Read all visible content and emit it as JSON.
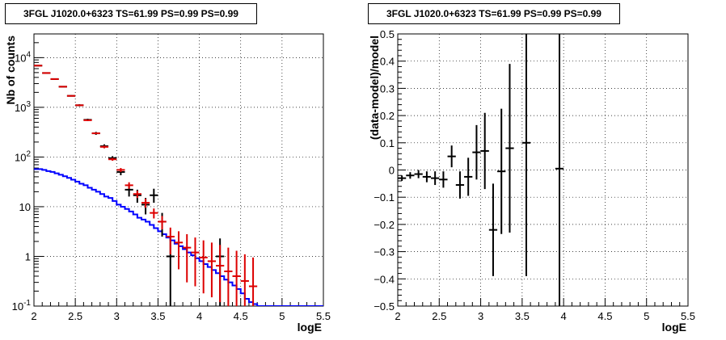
{
  "chart_data": [
    {
      "type": "step",
      "title": "3FGL J1020.0+6323 TS=61.99 PS=0.99 PS=0.99",
      "xlabel": "logE",
      "ylabel": "Nb of counts",
      "xlim": [
        2,
        5.5
      ],
      "ylim": [
        0.1,
        30000
      ],
      "yscale": "log",
      "grid": true,
      "x_ticks": [
        "2",
        "2.5",
        "3",
        "3.5",
        "4",
        "4.5",
        "5",
        "5.5"
      ],
      "y_ticks": [
        "10^{-1}",
        "1",
        "10",
        "10^{2}",
        "10^{3}",
        "10^{4}"
      ],
      "series": [
        {
          "style": "step",
          "color": "#0000ff",
          "edges": [
            2.0,
            2.05,
            2.1,
            2.15,
            2.2,
            2.25,
            2.3,
            2.35,
            2.4,
            2.45,
            2.5,
            2.55,
            2.6,
            2.65,
            2.7,
            2.75,
            2.8,
            2.85,
            2.9,
            2.95,
            3.0,
            3.05,
            3.1,
            3.15,
            3.2,
            3.25,
            3.3,
            3.35,
            3.4,
            3.45,
            3.5,
            3.55,
            3.6,
            3.65,
            3.7,
            3.75,
            3.8,
            3.85,
            3.9,
            3.95,
            4.0,
            4.05,
            4.1,
            4.15,
            4.2,
            4.25,
            4.3,
            4.35,
            4.4,
            4.45,
            4.5,
            4.55,
            4.6,
            4.65,
            4.7,
            5.5
          ],
          "values": [
            57,
            57,
            55,
            52,
            50,
            47,
            44,
            41,
            38,
            35,
            32,
            29,
            27,
            24,
            22,
            20,
            18,
            16,
            15,
            13,
            11,
            10,
            9,
            8,
            7,
            6,
            5.5,
            5,
            4.3,
            3.7,
            3.2,
            2.8,
            2.4,
            2.1,
            1.8,
            1.6,
            1.4,
            1.2,
            1.05,
            0.92,
            0.8,
            0.7,
            0.61,
            0.53,
            0.46,
            0.4,
            0.34,
            0.3,
            0.26,
            0.22,
            0.18,
            0.14,
            0.12,
            0.11,
            0.1
          ]
        },
        {
          "style": "errorbar",
          "color": "#000000",
          "x": [
            2.05,
            2.15,
            2.25,
            2.35,
            2.45,
            2.55,
            2.65,
            2.75,
            2.85,
            2.95,
            3.05,
            3.15,
            3.25,
            3.35,
            3.45,
            3.55,
            3.65,
            4.25
          ],
          "y": [
            6900,
            4900,
            3700,
            2600,
            1700,
            1100,
            560,
            300,
            165,
            95,
            50,
            22,
            17,
            11,
            17,
            5,
            1,
            1
          ],
          "ylo": [
            6800,
            4800,
            3600,
            2550,
            1650,
            1050,
            530,
            280,
            150,
            86,
            43,
            16,
            12,
            7,
            12,
            2.5,
            0.1,
            0.1
          ],
          "yhi": [
            7000,
            5000,
            3800,
            2650,
            1750,
            1150,
            590,
            320,
            180,
            104,
            57,
            28,
            22,
            15,
            23,
            7.5,
            2.3,
            2.3
          ]
        },
        {
          "style": "errorbar",
          "color": "#dd0000",
          "x": [
            2.05,
            2.15,
            2.25,
            2.35,
            2.45,
            2.55,
            2.65,
            2.75,
            2.85,
            2.95,
            3.05,
            3.15,
            3.25,
            3.35,
            3.45,
            3.55,
            3.65,
            3.75,
            3.85,
            3.95,
            4.05,
            4.15,
            4.25,
            4.35,
            4.45,
            4.55,
            4.65
          ],
          "y": [
            6900,
            4900,
            3700,
            2600,
            1700,
            1100,
            550,
            300,
            160,
            90,
            55,
            27,
            18,
            12,
            7.5,
            5,
            2.5,
            1.9,
            1.5,
            1.2,
            0.95,
            0.8,
            0.65,
            0.5,
            0.4,
            0.32,
            0.25
          ],
          "ylo": [
            6850,
            4850,
            3650,
            2560,
            1670,
            1080,
            535,
            290,
            150,
            84,
            50,
            23,
            15,
            9.5,
            5.8,
            3.5,
            1.1,
            0.55,
            0.3,
            0.25,
            0.18,
            0.15,
            0.12,
            0.1,
            0.1,
            0.1,
            0.1
          ],
          "yhi": [
            6950,
            4950,
            3750,
            2640,
            1730,
            1120,
            565,
            310,
            170,
            96,
            60,
            31,
            21,
            14.5,
            9.2,
            6.5,
            3.8,
            3.2,
            2.8,
            2.4,
            2.1,
            1.9,
            1.7,
            1.5,
            1.3,
            1.1,
            0.95
          ]
        }
      ]
    },
    {
      "type": "scatter",
      "title": "3FGL J1020.0+6323 TS=61.99 PS=0.99 PS=0.99",
      "xlabel": "logE",
      "ylabel": "(data-model)/model",
      "xlim": [
        2,
        5.5
      ],
      "ylim": [
        -0.5,
        0.5
      ],
      "grid": true,
      "x_ticks": [
        "2",
        "2.5",
        "3",
        "3.5",
        "4",
        "4.5",
        "5",
        "5.5"
      ],
      "y_ticks": [
        "−0.5",
        "−0.4",
        "−0.3",
        "−0.2",
        "−0.1",
        "0",
        "0.1",
        "0.2",
        "0.3",
        "0.4",
        "0.5"
      ],
      "series": [
        {
          "color": "#000000",
          "x": [
            2.05,
            2.15,
            2.25,
            2.35,
            2.45,
            2.55,
            2.65,
            2.75,
            2.85,
            2.95,
            3.05,
            3.15,
            3.25,
            3.35,
            3.55,
            3.95
          ],
          "y": [
            -0.03,
            -0.02,
            -0.015,
            -0.025,
            -0.03,
            -0.035,
            0.05,
            -0.055,
            -0.025,
            0.065,
            0.07,
            -0.22,
            -0.005,
            0.08,
            0.1,
            0.005
          ],
          "err": [
            0.01,
            0.012,
            0.015,
            0.02,
            0.025,
            0.03,
            0.04,
            0.05,
            0.07,
            0.1,
            0.14,
            0.17,
            0.23,
            0.31,
            0.49,
            0.6
          ]
        }
      ]
    }
  ]
}
